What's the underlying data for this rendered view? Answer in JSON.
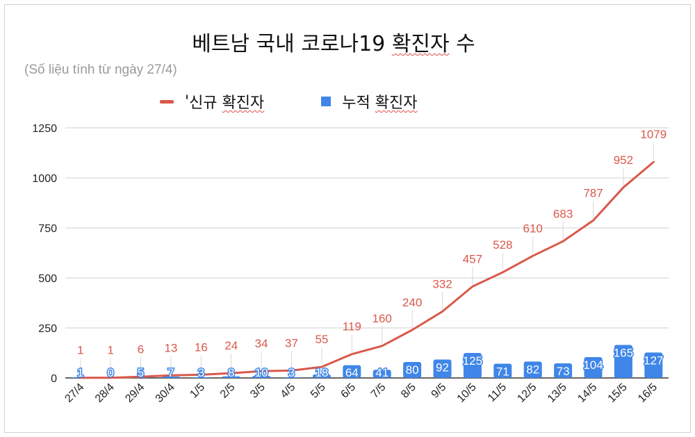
{
  "title_parts": [
    "베트남 국내 코로나19 ",
    "확진자",
    " 수"
  ],
  "subtitle": "(Số liệu tính từ ngày 27/4)",
  "legend": {
    "line_label_prefix": "'",
    "line_label_a": "신규",
    "line_label_b": "확진자",
    "bar_label_a": "누적",
    "bar_label_b": "확진자"
  },
  "colors": {
    "line": "#d9584a",
    "bar": "#3f86e8",
    "line_label": "#d9584a",
    "bar_label": "#ffffff",
    "grid": "#cfcfcf",
    "axis_text": "#222222"
  },
  "chart_data": {
    "type": "line+bar",
    "categories": [
      "27/4",
      "28/4",
      "29/4",
      "30/4",
      "1/5",
      "2/5",
      "3/5",
      "4/5",
      "5/5",
      "6/5",
      "7/5",
      "8/5",
      "9/5",
      "10/5",
      "11/5",
      "12/5",
      "13/5",
      "14/5",
      "15/5",
      "16/5"
    ],
    "series": [
      {
        "name": "신규 확진자",
        "type": "line",
        "values": [
          1,
          1,
          6,
          13,
          16,
          24,
          34,
          37,
          55,
          119,
          160,
          240,
          332,
          457,
          528,
          610,
          683,
          787,
          952,
          1079
        ]
      },
      {
        "name": "누적 확진자",
        "type": "bar",
        "values": [
          1,
          0,
          5,
          7,
          3,
          8,
          10,
          3,
          18,
          64,
          41,
          80,
          92,
          125,
          71,
          82,
          73,
          104,
          165,
          127
        ]
      }
    ],
    "yticks": [
      0,
      250,
      500,
      750,
      1000,
      1250
    ],
    "ylim": [
      0,
      1250
    ],
    "grid": true,
    "legend_position": "top"
  }
}
